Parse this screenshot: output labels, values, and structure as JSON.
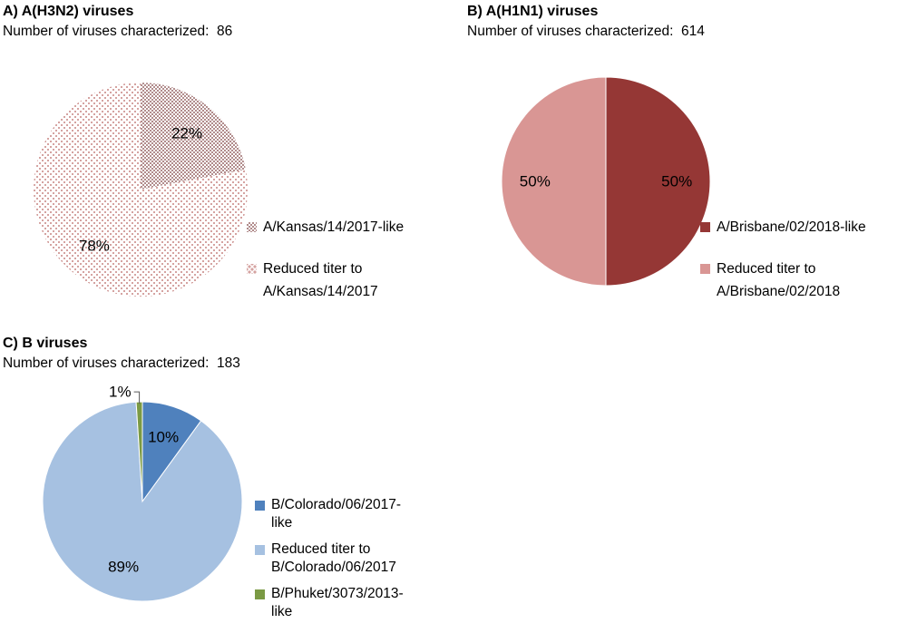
{
  "figure": {
    "background": "#ffffff"
  },
  "panels": [
    {
      "id": "A",
      "title": "A) A(H3N2) viruses",
      "subtitle": "Number of viruses characterized:  86",
      "legend": [
        {
          "label": "A/Kansas/14/2017-like",
          "swatch": "pattern:dense"
        },
        {
          "label": "Reduced titer to\nA/Kansas/14/2017",
          "swatch": "pattern:sparse"
        }
      ]
    },
    {
      "id": "B",
      "title": "B) A(H1N1) viruses",
      "subtitle": "Number of viruses characterized:  614",
      "legend": [
        {
          "label": "A/Brisbane/02/2018-like",
          "swatch": "#953735"
        },
        {
          "label": "Reduced titer to\nA/Brisbane/02/2018",
          "swatch": "#D99694"
        }
      ]
    },
    {
      "id": "C",
      "title": "C) B viruses",
      "subtitle": "Number of viruses characterized:  183",
      "legend": [
        {
          "label": "B/Colorado/06/2017-\nlike",
          "swatch": "#4F81BD"
        },
        {
          "label": "Reduced titer to\nB/Colorado/06/2017",
          "swatch": "#A6C1E1"
        },
        {
          "label": "B/Phuket/3073/2013-\nlike",
          "swatch": "#7B9A44"
        }
      ]
    }
  ],
  "colors": {
    "dense_dot": "#B18C8C",
    "sparse_dot": "#D5A3A1",
    "h1n1_like": "#953735",
    "h1n1_reduced": "#D99694",
    "b_colorado_like": "#4F81BD",
    "b_colorado_reduced": "#A6C1E1",
    "b_phuket_like": "#7B9A44",
    "leader_line": "#595959",
    "data_label_text": "#000000"
  },
  "chart_data": [
    {
      "type": "pie",
      "panel": "A",
      "title": "A) A(H3N2) viruses",
      "number_characterized": 86,
      "legend_position": "right",
      "slices": [
        {
          "name": "A/Kansas/14/2017-like",
          "pct": 22,
          "data_label": "22%",
          "fill": "pattern:dense"
        },
        {
          "name": "Reduced titer to A/Kansas/14/2017",
          "pct": 78,
          "data_label": "78%",
          "fill": "pattern:sparse"
        }
      ]
    },
    {
      "type": "pie",
      "panel": "B",
      "title": "B) A(H1N1) viruses",
      "number_characterized": 614,
      "legend_position": "right",
      "slices": [
        {
          "name": "A/Brisbane/02/2018-like",
          "pct": 50,
          "data_label": "50%",
          "fill": "#953735"
        },
        {
          "name": "Reduced titer to A/Brisbane/02/2018",
          "pct": 50,
          "data_label": "50%",
          "fill": "#D99694"
        }
      ]
    },
    {
      "type": "pie",
      "panel": "C",
      "title": "C) B viruses",
      "number_characterized": 183,
      "legend_position": "right",
      "slices": [
        {
          "name": "B/Colorado/06/2017-like",
          "pct": 10,
          "data_label": "10%",
          "fill": "#4F81BD"
        },
        {
          "name": "Reduced titer to B/Colorado/06/2017",
          "pct": 89,
          "data_label": "89%",
          "fill": "#A6C1E1"
        },
        {
          "name": "B/Phuket/3073/2013-like",
          "pct": 1,
          "data_label": "1%",
          "fill": "#7B9A44"
        }
      ]
    }
  ]
}
